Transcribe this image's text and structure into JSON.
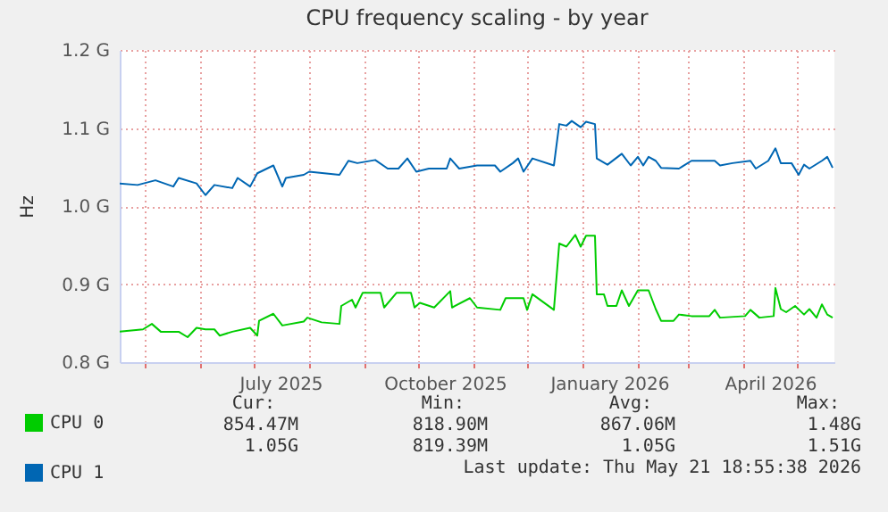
{
  "chart_data": {
    "type": "line",
    "title": "CPU frequency scaling - by year",
    "ylabel": "Hz",
    "xlim": [
      "2025-04-17",
      "2026-05-22"
    ],
    "xticks": [
      {
        "value": "2025-05-01",
        "label": null
      },
      {
        "value": "2025-06-01",
        "label": null
      },
      {
        "value": "2025-07-01",
        "label": null
      },
      {
        "value": "2025-07-16",
        "label": "July 2025"
      },
      {
        "value": "2025-08-01",
        "label": null
      },
      {
        "value": "2025-09-01",
        "label": null
      },
      {
        "value": "2025-10-01",
        "label": null
      },
      {
        "value": "2025-10-16",
        "label": "October 2025"
      },
      {
        "value": "2025-11-01",
        "label": null
      },
      {
        "value": "2025-12-01",
        "label": null
      },
      {
        "value": "2026-01-01",
        "label": null
      },
      {
        "value": "2026-01-16",
        "label": "January 2026"
      },
      {
        "value": "2026-02-01",
        "label": null
      },
      {
        "value": "2026-03-01",
        "label": null
      },
      {
        "value": "2026-04-01",
        "label": null
      },
      {
        "value": "2026-04-16",
        "label": "April 2026"
      },
      {
        "value": "2026-05-01",
        "label": null
      }
    ],
    "ylim": [
      0.8,
      1.2
    ],
    "yticks": [
      {
        "value": 0.8,
        "label": "0.8 G"
      },
      {
        "value": 0.9,
        "label": "0.9 G"
      },
      {
        "value": 1.0,
        "label": "1.0 G"
      },
      {
        "value": 1.1,
        "label": "1.1 G"
      },
      {
        "value": 1.2,
        "label": "1.2 G"
      }
    ],
    "grid": true,
    "legend": "bottom left",
    "marker": "none",
    "line_style": "solid",
    "series": [
      {
        "name": "CPU 0",
        "color": "#00cc00",
        "x": [
          "2025-04-17",
          "2025-04-30",
          "2025-05-05",
          "2025-05-10",
          "2025-05-20",
          "2025-05-25",
          "2025-05-30",
          "2025-06-04",
          "2025-06-09",
          "2025-06-12",
          "2025-06-19",
          "2025-06-29",
          "2025-07-03",
          "2025-07-04",
          "2025-07-12",
          "2025-07-17",
          "2025-07-29",
          "2025-07-31",
          "2025-08-08",
          "2025-08-18",
          "2025-08-19",
          "2025-08-25",
          "2025-08-27",
          "2025-08-31",
          "2025-09-10",
          "2025-09-12",
          "2025-09-19",
          "2025-09-27",
          "2025-09-29",
          "2025-10-02",
          "2025-10-10",
          "2025-10-19",
          "2025-10-20",
          "2025-10-30",
          "2025-11-03",
          "2025-11-16",
          "2025-11-19",
          "2025-11-29",
          "2025-12-01",
          "2025-12-04",
          "2025-12-16",
          "2025-12-19",
          "2025-12-23",
          "2025-12-28",
          "2025-12-31",
          "2026-01-03",
          "2026-01-08",
          "2026-01-09",
          "2026-01-13",
          "2026-01-15",
          "2026-01-20",
          "2026-01-23",
          "2026-01-27",
          "2026-02-01",
          "2026-02-07",
          "2026-02-11",
          "2026-02-14",
          "2026-02-21",
          "2026-02-24",
          "2026-03-03",
          "2026-03-13",
          "2026-03-16",
          "2026-03-19",
          "2026-04-02",
          "2026-04-05",
          "2026-04-10",
          "2026-04-18",
          "2026-04-19",
          "2026-04-22",
          "2026-04-25",
          "2026-04-30",
          "2026-05-05",
          "2026-05-08",
          "2026-05-12",
          "2026-05-15",
          "2026-05-18",
          "2026-05-21"
        ],
        "values": [
          0.839,
          0.842,
          0.849,
          0.839,
          0.839,
          0.832,
          0.844,
          0.842,
          0.842,
          0.834,
          0.839,
          0.844,
          0.834,
          0.853,
          0.862,
          0.847,
          0.852,
          0.857,
          0.851,
          0.849,
          0.872,
          0.88,
          0.87,
          0.889,
          0.889,
          0.87,
          0.889,
          0.889,
          0.87,
          0.876,
          0.87,
          0.891,
          0.87,
          0.882,
          0.87,
          0.867,
          0.882,
          0.882,
          0.867,
          0.887,
          0.867,
          0.952,
          0.948,
          0.963,
          0.948,
          0.962,
          0.962,
          0.887,
          0.887,
          0.872,
          0.872,
          0.892,
          0.872,
          0.892,
          0.892,
          0.868,
          0.853,
          0.853,
          0.861,
          0.859,
          0.859,
          0.867,
          0.857,
          0.859,
          0.867,
          0.857,
          0.859,
          0.895,
          0.868,
          0.864,
          0.872,
          0.861,
          0.868,
          0.857,
          0.874,
          0.861,
          0.857
        ]
      },
      {
        "name": "CPU 1",
        "color": "#0066b3",
        "x": [
          "2025-04-17",
          "2025-04-27",
          "2025-05-07",
          "2025-05-17",
          "2025-05-20",
          "2025-05-30",
          "2025-06-04",
          "2025-06-09",
          "2025-06-19",
          "2025-06-22",
          "2025-06-29",
          "2025-07-03",
          "2025-07-12",
          "2025-07-17",
          "2025-07-19",
          "2025-07-29",
          "2025-08-01",
          "2025-08-18",
          "2025-08-23",
          "2025-08-28",
          "2025-09-07",
          "2025-09-14",
          "2025-09-20",
          "2025-09-25",
          "2025-09-30",
          "2025-10-07",
          "2025-10-17",
          "2025-10-19",
          "2025-10-24",
          "2025-11-03",
          "2025-11-13",
          "2025-11-16",
          "2025-11-23",
          "2025-11-26",
          "2025-11-29",
          "2025-12-04",
          "2025-12-16",
          "2025-12-19",
          "2025-12-23",
          "2025-12-26",
          "2025-12-31",
          "2026-01-03",
          "2026-01-08",
          "2026-01-09",
          "2026-01-15",
          "2026-01-23",
          "2026-01-28",
          "2026-02-01",
          "2026-02-04",
          "2026-02-07",
          "2026-02-11",
          "2026-02-14",
          "2026-02-24",
          "2026-03-03",
          "2026-03-16",
          "2026-03-19",
          "2026-03-26",
          "2026-04-05",
          "2026-04-08",
          "2026-04-15",
          "2026-04-19",
          "2026-04-22",
          "2026-04-28",
          "2026-05-02",
          "2026-05-05",
          "2026-05-08",
          "2026-05-15",
          "2026-05-18",
          "2026-05-21"
        ],
        "values": [
          1.029,
          1.027,
          1.033,
          1.025,
          1.036,
          1.029,
          1.014,
          1.027,
          1.023,
          1.036,
          1.025,
          1.042,
          1.052,
          1.025,
          1.036,
          1.04,
          1.044,
          1.04,
          1.058,
          1.055,
          1.059,
          1.048,
          1.048,
          1.061,
          1.044,
          1.048,
          1.048,
          1.061,
          1.048,
          1.052,
          1.052,
          1.044,
          1.055,
          1.061,
          1.044,
          1.061,
          1.052,
          1.105,
          1.103,
          1.109,
          1.101,
          1.108,
          1.105,
          1.061,
          1.053,
          1.067,
          1.052,
          1.063,
          1.052,
          1.063,
          1.058,
          1.049,
          1.048,
          1.058,
          1.058,
          1.052,
          1.055,
          1.058,
          1.048,
          1.058,
          1.074,
          1.055,
          1.055,
          1.04,
          1.053,
          1.048,
          1.058,
          1.063,
          1.049
        ]
      }
    ],
    "annotations": [
      "Cur:",
      "Min:",
      "Avg:",
      "Max:",
      "854.47M",
      "818.90M",
      "867.06M",
      "1.48G",
      "1.05G",
      "819.39M",
      "1.05G",
      "1.51G",
      "Last update: Thu May 21 18:55:38 2026"
    ]
  }
}
